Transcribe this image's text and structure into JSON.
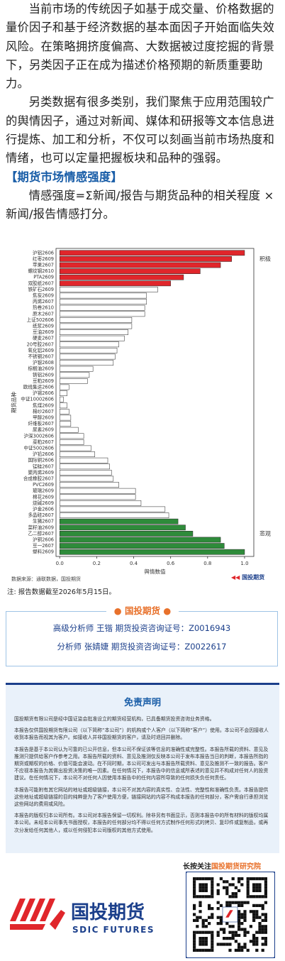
{
  "intro": {
    "paragraphs": [
      "当前市场的传统因子如基于成交量、价格数据的量价因子和基于经济数据的基本面因子开始面临失效风险。在策略拥挤度偏高、大数据被过度挖掘的背景下，另类因子正在成为描述价格预期的新质重要助力。",
      "另类数据有很多类别，我们聚焦于应用范围较广的舆情因子，通过对新闻、媒体和研报等文本信息进行提炼、加工和分析，不仅可以刻画当前市场热度和情绪，也可以定量把握板块和品种的强弱。"
    ],
    "section_title": "【期货市场情感强度】",
    "formula": "情感强度=Σ新闻/报告与期货品种的相关程度 × 新闻/报告情感打分。"
  },
  "chart_data": {
    "type": "bar",
    "orientation": "horizontal",
    "xlabel": "舆情数值",
    "ylabel": "期货品种",
    "annotations": [
      "积极",
      "悲观"
    ],
    "categories": [
      "沪铝2606",
      "红枣2609",
      "苹果2607",
      "螺纹钢2610",
      "PTA2609",
      "双胶纸2607",
      "铁矿石2609",
      "焦炭2609",
      "丙烯2607",
      "热卷2610",
      "原木2607",
      "上证502606",
      "纸浆2609",
      "豆油2609",
      "硬麦2607",
      "20号胶2607",
      "氧化铝2609",
      "不锈钢2607",
      "沪银2608",
      "棕榈油2609",
      "铸铝2609",
      "豆粕2609",
      "欧线集运2606",
      "沪锡2606",
      "中证10002606",
      "焦煤2609",
      "棉纱2607",
      "甲醇2609",
      "纤维板2607",
      "尿素2609",
      "沪深3002606",
      "菜粕2607",
      "中证5002606",
      "沪铅2606",
      "国际铜2606",
      "锰硅2607",
      "聚丙烯2609",
      "合成橡胶2607",
      "PVC2609",
      "玻璃2609",
      "棉花2609",
      "烧碱2609",
      "沪金2606",
      "多晶硅2607",
      "生猪2607",
      "菜籽油2609",
      "乙二醇2607",
      "沪铜2606",
      "豆一2607",
      "塑料2609"
    ],
    "values": [
      1.0,
      0.93,
      0.87,
      0.76,
      0.67,
      0.6,
      0.53,
      0.47,
      0.47,
      0.46,
      0.46,
      0.39,
      0.39,
      0.37,
      0.35,
      0.32,
      0.31,
      0.3,
      0.29,
      0.18,
      0.16,
      0.15,
      0.05,
      0.04,
      0.02,
      0.04,
      0.05,
      0.06,
      0.06,
      0.1,
      0.13,
      0.13,
      0.17,
      0.19,
      0.26,
      0.27,
      0.28,
      0.29,
      0.32,
      0.41,
      0.41,
      0.44,
      0.57,
      0.59,
      0.64,
      0.68,
      0.72,
      0.87,
      0.89,
      1.0
    ],
    "colors": [
      "#e0262b",
      "#e0262b",
      "#e0262b",
      "#e0262b",
      "#e0262b",
      "#e0262b",
      "#ffffff",
      "#ffffff",
      "#ffffff",
      "#ffffff",
      "#ffffff",
      "#ffffff",
      "#ffffff",
      "#ffffff",
      "#ffffff",
      "#ffffff",
      "#ffffff",
      "#ffffff",
      "#ffffff",
      "#ffffff",
      "#ffffff",
      "#ffffff",
      "#ffffff",
      "#ffffff",
      "#ffffff",
      "#ffffff",
      "#ffffff",
      "#ffffff",
      "#ffffff",
      "#ffffff",
      "#ffffff",
      "#ffffff",
      "#ffffff",
      "#ffffff",
      "#ffffff",
      "#ffffff",
      "#ffffff",
      "#ffffff",
      "#ffffff",
      "#ffffff",
      "#ffffff",
      "#ffffff",
      "#ffffff",
      "#ffffff",
      "#2e8b3a",
      "#2e8b3a",
      "#2e8b3a",
      "#2e8b3a",
      "#2e8b3a",
      "#2e8b3a"
    ],
    "xlim": [
      -0.02,
      1.05
    ],
    "xticks": [
      {
        "value": 0,
        "label": "0.0"
      },
      0.2,
      0.4,
      0.6,
      0.8,
      {
        "value": 1,
        "label": "1.0"
      }
    ]
  },
  "chart_source": "数据来源：通联数据，国投期货",
  "source_logo": "国投期货",
  "note": "注: 报告数据截至2026年5月15日。",
  "analysts": {
    "title": "国投期货",
    "lines": [
      "高级分析师 王锴 期货投资咨询证号：Z0016943",
      "分析师 张婧婕 期货投资咨询证号：Z0022617"
    ]
  },
  "disclaimer": {
    "title": "免责声明",
    "paragraphs": [
      "国投期货有限公司是经中国证监会批准设立的期货经营机构，已具备期货投资咨询业务资格。",
      "本报告仅供国投期货有限公司（以下简称“本公司”）的机构或个人客户（以下简称“客户”）使用。本公司不会因接收人收到本报告而视其为客户。如接收人并非国投期货的客户，请及时退回并删除。",
      "本报告是基于本公司认为可靠的已公开信息，但本公司不保证该等信息的准确性或完整性。本报告所载的资料、意见及推测只提供给客户作参考之用。本报告所载的资料、意见及推测仅反映本公司于发布本报告当日的判断，本报告所指的期货或期权的价格、价值可能会波动。在不同时期，本公司可发出与本报告所载资料、意见及推测不一致的报告。客户不应视本报告为其做出投资决策的唯一因素。在任何情况下，本报告中的信息或所表述的意见并不构成对任何人的投资建议。在任何情况下，本公司不对任何人因使用本报告中的任何内容所导致的任何损失负任何责任。",
      "本报告可能附有其它网站的地址或超级链接，本公司不对其内容的真实性、合法性、完整性和准确性负责。本报告提供这些地址或超级链接的目的纯粹是为了客户使用方便，链接网站的内容不构成本报告的任何部分，客户需自行承担浏览这些网站的费用或风险。",
      "本报告的版权归本公司所有。本公司对本报告保留一切权利。除非另有书面显示，否则本报告中的所有材料的版权均属本公司。未经本公司事先书面授权，本报告的任何部分均不得以任何方式制作任何形式的拷贝、复印件或复制品，或再次分发给任何其他人，或以任何侵犯本公司版权的其他方式使用。"
    ]
  },
  "footer": {
    "follow_prefix": "长按关注",
    "follow_name": "国投期货研究院",
    "logo_cn": "国投期货",
    "logo_en": "SDIC FUTURES"
  }
}
